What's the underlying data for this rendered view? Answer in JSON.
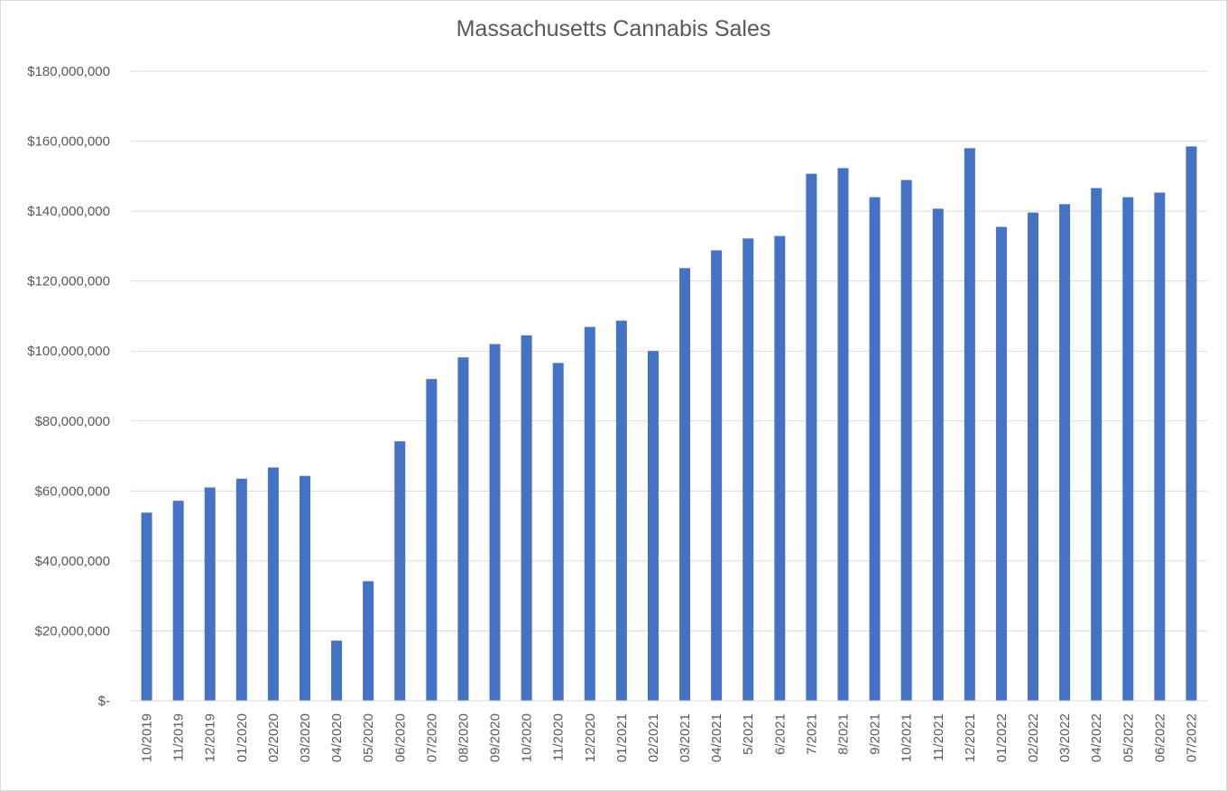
{
  "chart_data": {
    "type": "bar",
    "title": "Massachusetts Cannabis Sales",
    "xlabel": "",
    "ylabel": "",
    "ylim": [
      0,
      180000000
    ],
    "grid": true,
    "legend": "none",
    "bar_color": "#4472C4",
    "yticks": [
      {
        "value": 0,
        "label": "$-"
      },
      {
        "value": 20000000,
        "label": "$20,000,000"
      },
      {
        "value": 40000000,
        "label": "$40,000,000"
      },
      {
        "value": 60000000,
        "label": "$60,000,000"
      },
      {
        "value": 80000000,
        "label": "$80,000,000"
      },
      {
        "value": 100000000,
        "label": "$100,000,000"
      },
      {
        "value": 120000000,
        "label": "$120,000,000"
      },
      {
        "value": 140000000,
        "label": "$140,000,000"
      },
      {
        "value": 160000000,
        "label": "$160,000,000"
      },
      {
        "value": 180000000,
        "label": "$180,000,000"
      }
    ],
    "categories": [
      "10/2019",
      "11/2019",
      "12/2019",
      "01/2020",
      "02/2020",
      "03/2020",
      "04/2020",
      "05/2020",
      "06/2020",
      "07/2020",
      "08/2020",
      "09/2020",
      "10/2020",
      "11/2020",
      "12/2020",
      "01/2021",
      "02/2021",
      "03/2021",
      "04/2021",
      "5/2021",
      "6/2021",
      "7/2021",
      "8/2021",
      "9/2021",
      "10/2021",
      "11/2021",
      "12/2021",
      "01/2022",
      "02/2022",
      "03/2022",
      "04/2022",
      "05/2022",
      "06/2022",
      "07/2022"
    ],
    "values": [
      53800000,
      57200000,
      61000000,
      63500000,
      66700000,
      64300000,
      17200000,
      34200000,
      74200000,
      92000000,
      98200000,
      102000000,
      104500000,
      96600000,
      106900000,
      108700000,
      100000000,
      123700000,
      128800000,
      132200000,
      132900000,
      150700000,
      152300000,
      144000000,
      148900000,
      140700000,
      158000000,
      135500000,
      139600000,
      142000000,
      146600000,
      144000000,
      145300000,
      158500000
    ]
  }
}
